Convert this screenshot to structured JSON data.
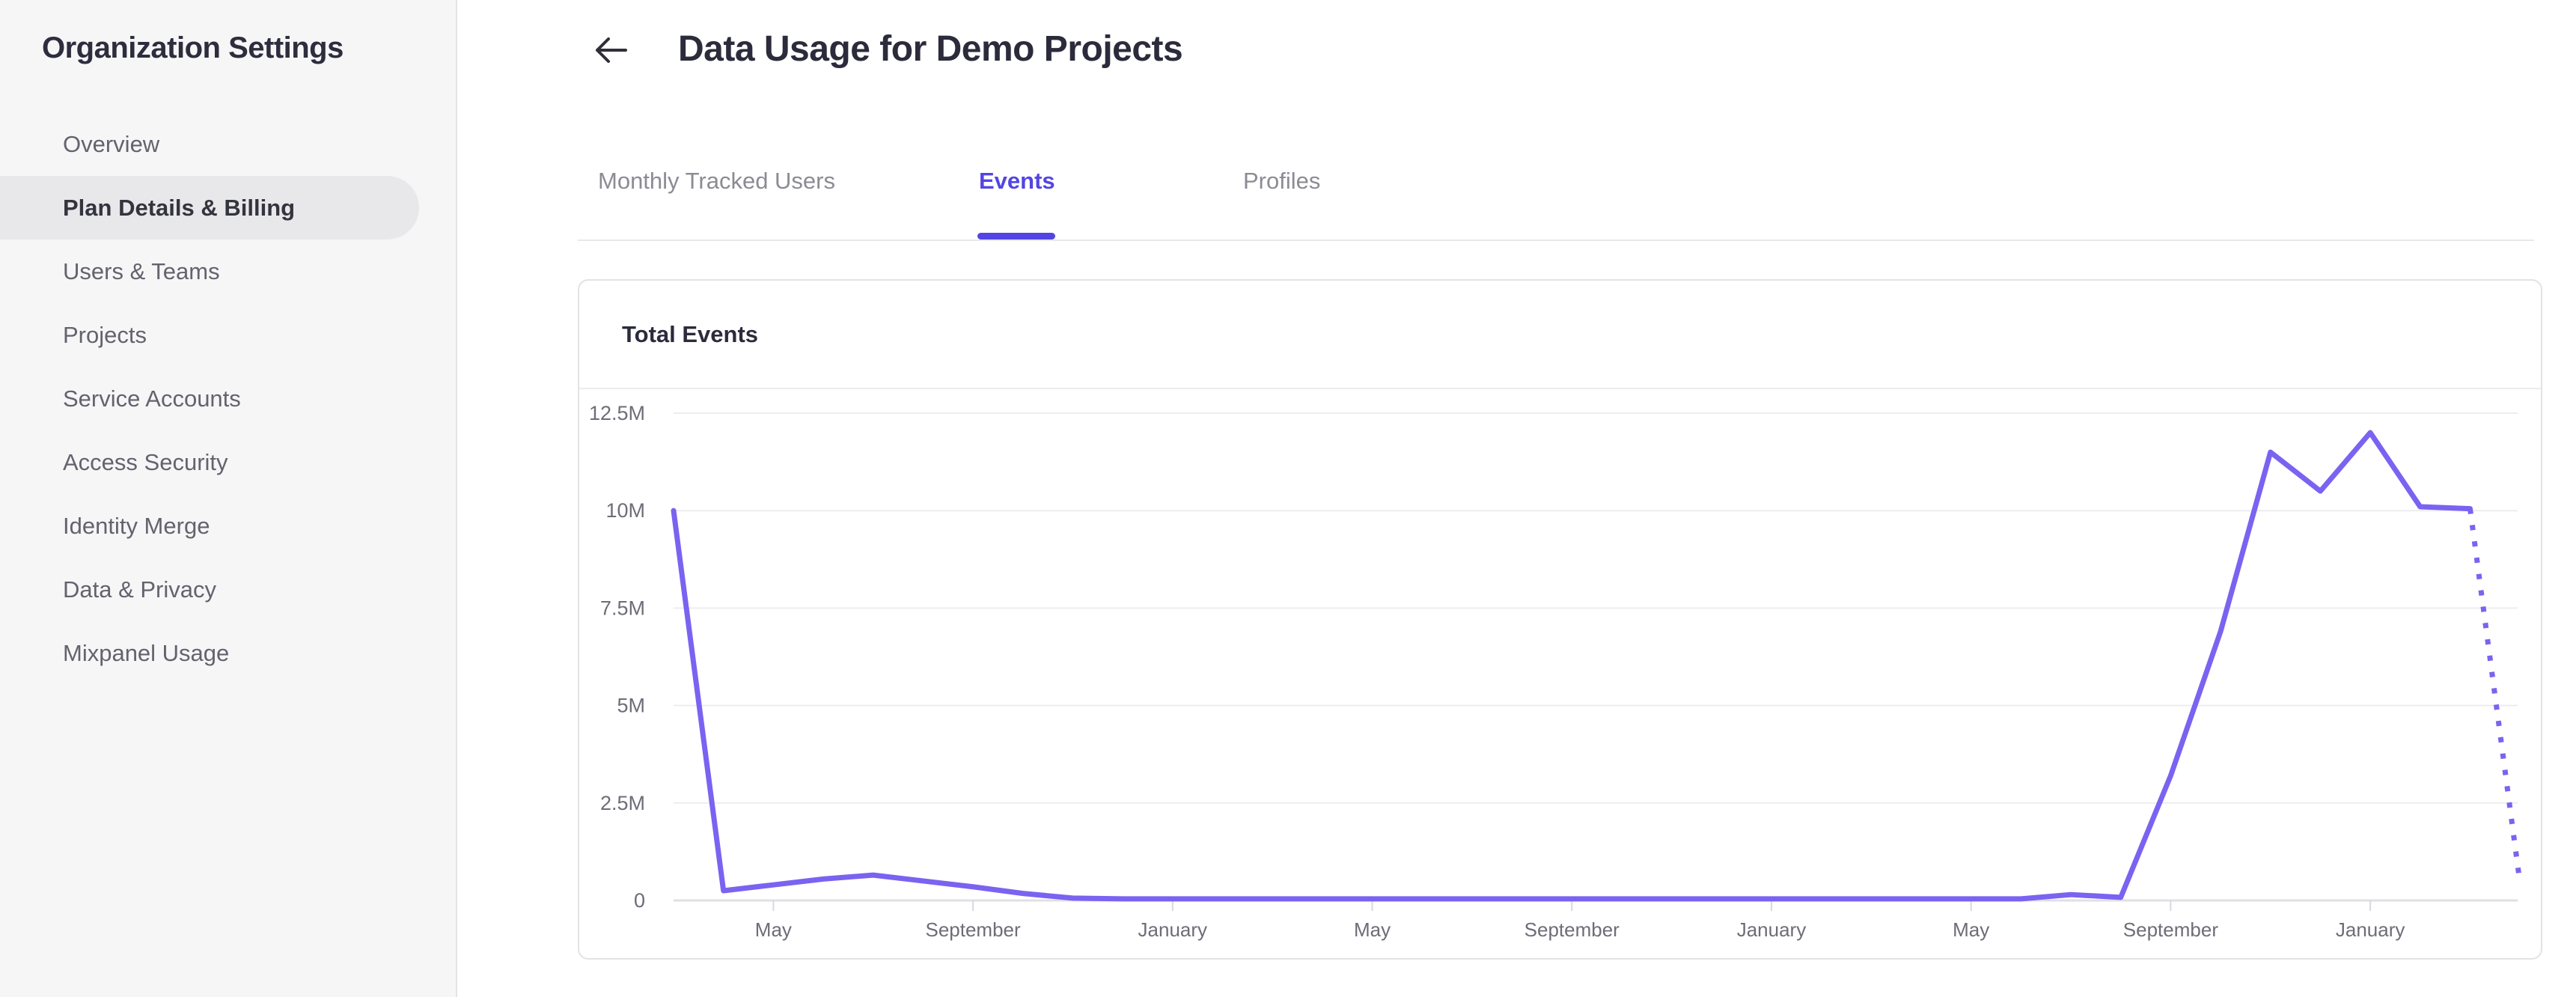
{
  "sidebar": {
    "title": "Organization Settings",
    "items": [
      {
        "label": "Overview",
        "selected": false
      },
      {
        "label": "Plan Details & Billing",
        "selected": true
      },
      {
        "label": "Users & Teams",
        "selected": false
      },
      {
        "label": "Projects",
        "selected": false
      },
      {
        "label": "Service Accounts",
        "selected": false
      },
      {
        "label": "Access Security",
        "selected": false
      },
      {
        "label": "Identity Merge",
        "selected": false
      },
      {
        "label": "Data & Privacy",
        "selected": false
      },
      {
        "label": "Mixpanel Usage",
        "selected": false
      }
    ]
  },
  "header": {
    "back_icon": "arrow-left",
    "title": "Data Usage for Demo Projects"
  },
  "tabs": [
    {
      "label": "Monthly Tracked Users",
      "active": false
    },
    {
      "label": "Events",
      "active": true
    },
    {
      "label": "Profiles",
      "active": false
    }
  ],
  "chart_card": {
    "title": "Total Events"
  },
  "chart_data": {
    "type": "line",
    "title": "Total Events",
    "unit": "events",
    "x_start_month": "March",
    "x_interval": "monthly",
    "x_tick_labels": [
      "May",
      "September",
      "January",
      "May",
      "September",
      "January",
      "May",
      "September",
      "January"
    ],
    "x_tick_point_indices": [
      2,
      6,
      10,
      14,
      18,
      22,
      26,
      30,
      34
    ],
    "y_tick_labels": [
      "12.5M",
      "10M",
      "7.5M",
      "5M",
      "2.5M",
      "0"
    ],
    "y_tick_values_millions": [
      12.5,
      10,
      7.5,
      5,
      2.5,
      0
    ],
    "ylim_millions": [
      0,
      12.5
    ],
    "grid": "horizontal",
    "legend": "none",
    "series": [
      {
        "name": "Total Events",
        "values_millions": [
          10,
          0.25,
          0.4,
          0.55,
          0.65,
          0.5,
          0.35,
          0.18,
          0.06,
          0.04,
          0.04,
          0.04,
          0.04,
          0.04,
          0.04,
          0.04,
          0.04,
          0.04,
          0.04,
          0.04,
          0.04,
          0.04,
          0.04,
          0.04,
          0.04,
          0.04,
          0.04,
          0.04,
          0.15,
          0.08,
          3.2,
          6.9,
          11.5,
          10.5,
          12.0,
          10.1,
          10.05,
          0.45
        ]
      }
    ],
    "last_segment_style": "dotted",
    "line_color": "#7a63f1"
  },
  "colors": {
    "accent_purple": "#5345e4",
    "line_purple": "#7a63f1",
    "sidebar_bg": "#f6f6f7",
    "selected_pill_bg": "#e8e8ea",
    "text_dark": "#2b2b3c",
    "text_gray": "#63636e",
    "tab_inactive": "#8b8b95",
    "axis_label_gray": "#6d6d78",
    "gridline": "#ededf0",
    "axis_line": "#e0e0e4",
    "card_border": "#e3e3e6"
  }
}
